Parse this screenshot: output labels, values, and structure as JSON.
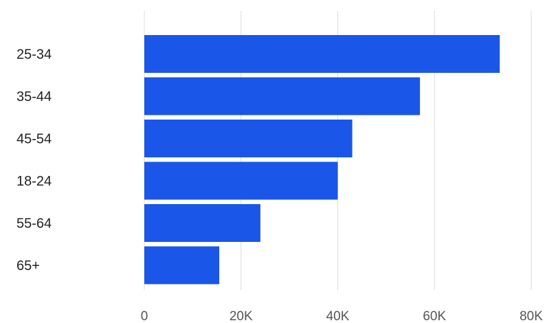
{
  "chart_data": {
    "type": "bar",
    "orientation": "horizontal",
    "categories": [
      "25-34",
      "35-44",
      "45-54",
      "18-24",
      "55-64",
      "65+"
    ],
    "values": [
      73500,
      57000,
      43000,
      40000,
      24000,
      15500
    ],
    "xlim": [
      0,
      80000
    ],
    "x_ticks": [
      0,
      20000,
      40000,
      60000,
      80000
    ],
    "x_tick_labels": [
      "0",
      "20K",
      "40K",
      "60K",
      "80K"
    ],
    "grid": true,
    "bar_color": "#1a56e8",
    "title": "",
    "xlabel": "",
    "ylabel": ""
  }
}
